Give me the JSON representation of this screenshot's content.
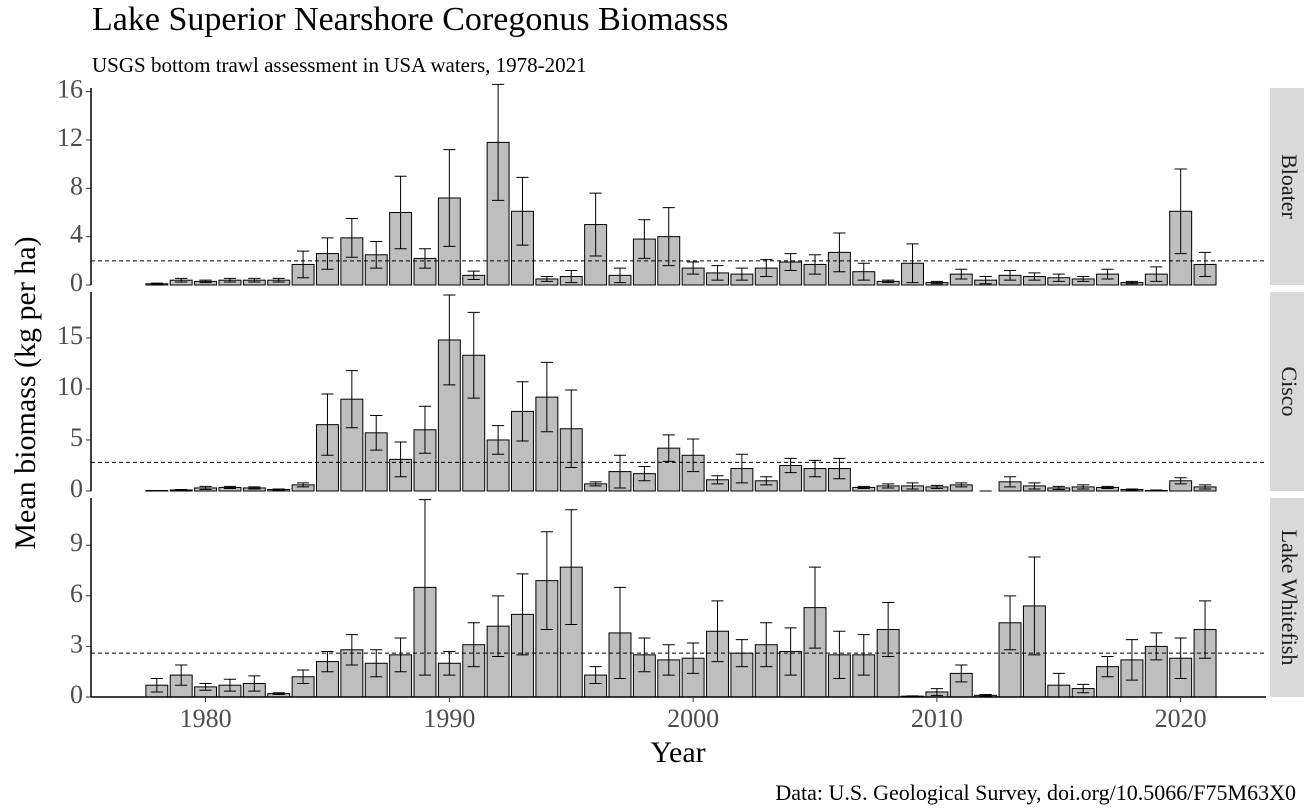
{
  "title": "Lake Superior Nearshore Coregonus Biomasss",
  "subtitle": "USGS bottom trawl assessment in USA waters, 1978-2021",
  "xlabel": "Year",
  "ylabel": "Mean biomass (kg per ha)",
  "caption": "Data: U.S. Geological Survey, doi.org/10.5066/F75M63X0",
  "chart_data": [
    {
      "type": "bar",
      "panel": "Bloater",
      "color": "#bebebe",
      "x": [
        1978,
        1979,
        1980,
        1981,
        1982,
        1983,
        1984,
        1985,
        1986,
        1987,
        1988,
        1989,
        1990,
        1991,
        1992,
        1993,
        1994,
        1995,
        1996,
        1997,
        1998,
        1999,
        2000,
        2001,
        2002,
        2003,
        2004,
        2005,
        2006,
        2007,
        2008,
        2009,
        2010,
        2011,
        2012,
        2013,
        2014,
        2015,
        2016,
        2017,
        2018,
        2019,
        2020,
        2021
      ],
      "values": [
        0.1,
        0.4,
        0.3,
        0.4,
        0.4,
        0.4,
        1.7,
        2.6,
        3.9,
        2.5,
        6.0,
        2.2,
        7.2,
        0.8,
        11.8,
        6.1,
        0.5,
        0.7,
        5.0,
        0.8,
        3.8,
        4.0,
        1.4,
        1.0,
        0.9,
        1.4,
        1.9,
        1.7,
        2.7,
        1.1,
        0.3,
        1.8,
        0.2,
        0.9,
        0.4,
        0.8,
        0.7,
        0.6,
        0.5,
        0.9,
        0.2,
        0.9,
        6.1,
        1.7
      ],
      "errors": [
        0.05,
        0.15,
        0.1,
        0.15,
        0.15,
        0.15,
        1.1,
        1.3,
        1.6,
        1.1,
        3.0,
        0.8,
        4.0,
        0.35,
        4.8,
        2.8,
        0.2,
        0.5,
        2.6,
        0.6,
        1.6,
        2.4,
        0.5,
        0.6,
        0.5,
        0.7,
        0.7,
        0.8,
        1.6,
        0.7,
        0.1,
        1.6,
        0.1,
        0.4,
        0.3,
        0.4,
        0.3,
        0.3,
        0.2,
        0.4,
        0.1,
        0.6,
        3.5,
        1.0
      ],
      "reference_line": 2.0,
      "xlim": [
        1975.3,
        2023.5
      ],
      "ylim": [
        0,
        16.3
      ],
      "yticks": [
        0,
        4,
        8,
        12,
        16
      ]
    },
    {
      "type": "bar",
      "panel": "Cisco",
      "color": "#bebebe",
      "x": [
        1978,
        1979,
        1980,
        1981,
        1982,
        1983,
        1984,
        1985,
        1986,
        1987,
        1988,
        1989,
        1990,
        1991,
        1992,
        1993,
        1994,
        1995,
        1996,
        1997,
        1998,
        1999,
        2000,
        2001,
        2002,
        2003,
        2004,
        2005,
        2006,
        2007,
        2008,
        2009,
        2010,
        2011,
        2012,
        2013,
        2014,
        2015,
        2016,
        2017,
        2018,
        2019,
        2020,
        2021
      ],
      "values": [
        0.05,
        0.1,
        0.3,
        0.35,
        0.3,
        0.15,
        0.6,
        6.5,
        9.0,
        5.7,
        3.1,
        6.0,
        14.8,
        13.3,
        5.0,
        7.8,
        9.2,
        6.1,
        0.7,
        1.9,
        1.7,
        4.2,
        3.5,
        1.1,
        2.2,
        1.0,
        2.5,
        2.2,
        2.2,
        0.35,
        0.5,
        0.5,
        0.4,
        0.6,
        0,
        0.9,
        0.5,
        0.3,
        0.4,
        0.35,
        0.15,
        0.05,
        1.0,
        0.4
      ],
      "errors": [
        0,
        0.05,
        0.15,
        0.1,
        0.1,
        0.05,
        0.2,
        3.0,
        2.8,
        1.7,
        1.7,
        2.3,
        4.4,
        4.2,
        1.4,
        2.9,
        3.4,
        3.8,
        0.2,
        1.6,
        0.7,
        1.3,
        1.6,
        0.4,
        1.4,
        0.4,
        0.7,
        0.8,
        1.0,
        0.1,
        0.2,
        0.3,
        0.15,
        0.2,
        0,
        0.5,
        0.3,
        0.15,
        0.2,
        0.1,
        0.05,
        0.05,
        0.3,
        0.2
      ],
      "reference_line": 2.8,
      "xlim": [
        1975.3,
        2023.5
      ],
      "ylim": [
        0,
        19.5
      ],
      "yticks": [
        0,
        5,
        10,
        15
      ]
    },
    {
      "type": "bar",
      "panel": "Lake Whitefish",
      "color": "#bebebe",
      "x": [
        1978,
        1979,
        1980,
        1981,
        1982,
        1983,
        1984,
        1985,
        1986,
        1987,
        1988,
        1989,
        1990,
        1991,
        1992,
        1993,
        1994,
        1995,
        1996,
        1997,
        1998,
        1999,
        2000,
        2001,
        2002,
        2003,
        2004,
        2005,
        2006,
        2007,
        2008,
        2009,
        2010,
        2011,
        2012,
        2013,
        2014,
        2015,
        2016,
        2017,
        2018,
        2019,
        2020,
        2021
      ],
      "values": [
        0.7,
        1.3,
        0.6,
        0.7,
        0.8,
        0.2,
        1.2,
        2.1,
        2.8,
        2.0,
        2.5,
        6.5,
        2.0,
        3.1,
        4.2,
        4.9,
        6.9,
        7.7,
        1.3,
        3.8,
        2.5,
        2.2,
        2.3,
        3.9,
        2.6,
        3.1,
        2.7,
        5.3,
        2.5,
        2.5,
        4.0,
        0.05,
        0.3,
        1.4,
        0.1,
        4.4,
        5.4,
        0.7,
        0.5,
        1.8,
        2.2,
        3.0,
        2.3,
        4.0
      ],
      "errors": [
        0.4,
        0.6,
        0.2,
        0.35,
        0.45,
        0.05,
        0.4,
        0.6,
        0.9,
        0.8,
        1.0,
        5.2,
        0.7,
        1.3,
        1.8,
        2.4,
        2.9,
        3.4,
        0.5,
        2.7,
        1.0,
        0.9,
        0.9,
        1.8,
        0.8,
        1.3,
        1.4,
        2.4,
        1.4,
        1.2,
        1.6,
        0.02,
        0.2,
        0.5,
        0.05,
        1.6,
        2.9,
        0.7,
        0.25,
        0.6,
        1.2,
        0.8,
        1.2,
        1.7
      ],
      "reference_line": 2.6,
      "xlim": [
        1975.3,
        2023.5
      ],
      "ylim": [
        0,
        11.8
      ],
      "yticks": [
        0,
        3,
        6,
        9
      ],
      "xticks": [
        1980,
        1990,
        2000,
        2010,
        2020
      ]
    }
  ]
}
